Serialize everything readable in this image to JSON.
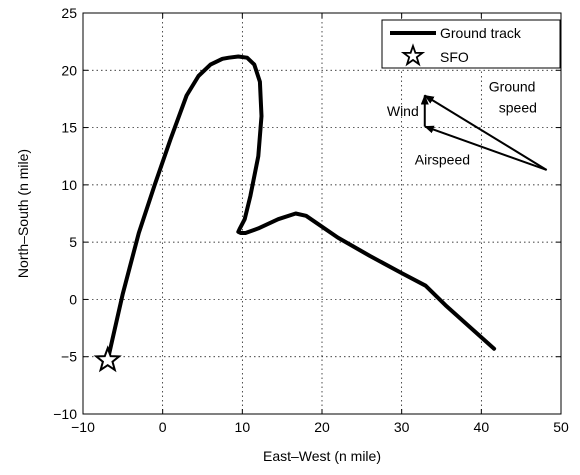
{
  "chart_data": {
    "type": "line",
    "xlabel": "East–West (n mile)",
    "ylabel": "North–South (n mile)",
    "xlim": [
      -10,
      50
    ],
    "ylim": [
      -10,
      25
    ],
    "xticks": [
      -10,
      0,
      10,
      20,
      30,
      40,
      50
    ],
    "yticks": [
      -10,
      -5,
      0,
      5,
      10,
      15,
      20,
      25
    ],
    "xtick_labels": [
      "−10",
      "0",
      "10",
      "20",
      "30",
      "40",
      "50"
    ],
    "ytick_labels": [
      "−10",
      "−5",
      "0",
      "5",
      "10",
      "15",
      "20",
      "25"
    ],
    "grid": true,
    "legend_position": "top-right",
    "series": [
      {
        "name": "Ground track",
        "x": [
          -6.9,
          -5.0,
          -3.0,
          -1.0,
          1.0,
          3.0,
          4.5,
          6.0,
          7.5,
          8.3,
          9.5,
          10.6,
          11.5,
          12.2,
          12.4,
          12.0,
          11.0,
          10.3,
          9.7,
          9.5,
          9.8,
          10.4,
          12.0,
          14.5,
          16.7,
          18.0,
          22.0,
          26.0,
          30.0,
          33.0,
          35.5,
          41.6
        ],
        "y": [
          -5.3,
          0.5,
          5.8,
          10.0,
          14.0,
          17.8,
          19.5,
          20.5,
          21.0,
          21.1,
          21.2,
          21.1,
          20.5,
          19.0,
          16.0,
          12.5,
          9.0,
          7.0,
          6.2,
          5.9,
          5.8,
          5.8,
          6.2,
          7.0,
          7.5,
          7.3,
          5.4,
          3.8,
          2.3,
          1.2,
          -0.5,
          -4.3
        ]
      },
      {
        "name": "SFO",
        "x": [
          -6.9
        ],
        "y": [
          -5.3
        ],
        "marker": "star"
      }
    ],
    "vectors": [
      {
        "name": "Wind",
        "from": [
          32.9,
          15.1
        ],
        "to": [
          32.9,
          17.8
        ]
      },
      {
        "name": "Airspeed",
        "from": [
          48.2,
          11.3
        ],
        "to": [
          32.9,
          15.1
        ]
      },
      {
        "name": "Ground speed",
        "from": [
          48.2,
          11.3
        ],
        "to": [
          32.9,
          17.8
        ]
      }
    ],
    "annotations": {
      "wind": "Wind",
      "ground_speed_line1": "Ground",
      "ground_speed_line2": "speed",
      "airspeed": "Airspeed"
    },
    "colors": {
      "line": "#000000",
      "grid": "#000000",
      "background": "#ffffff"
    }
  }
}
